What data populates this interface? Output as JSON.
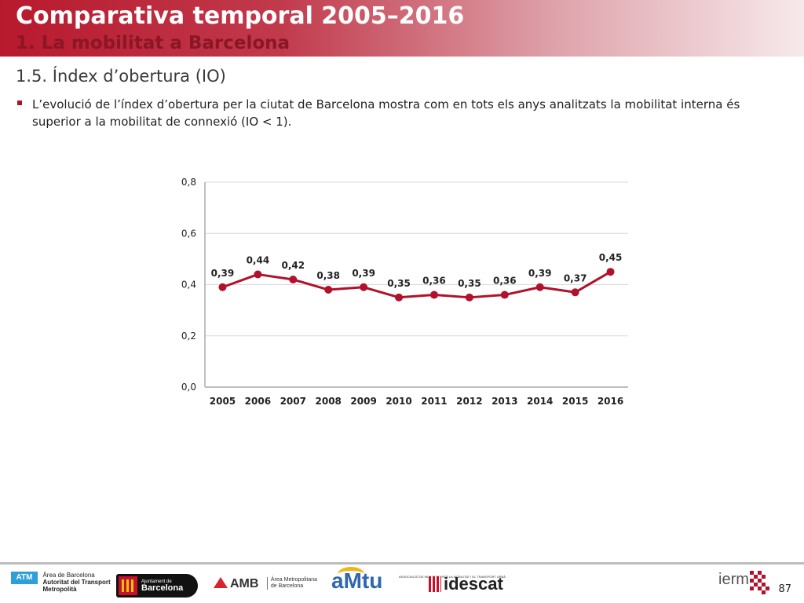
{
  "header": {
    "title": "Comparativa temporal 2005–2016",
    "subtitle": "1. La mobilitat a Barcelona"
  },
  "section_title": "1.5. Índex d’obertura (IO)",
  "bullet_text": "L’evolució de l’índex d’obertura per la ciutat de Barcelona mostra com en tots els anys analitzats la mobilitat interna és superior a la mobilitat de connexió (IO < 1).",
  "chart_data": {
    "type": "line",
    "categories": [
      "2005",
      "2006",
      "2007",
      "2008",
      "2009",
      "2010",
      "2011",
      "2012",
      "2013",
      "2014",
      "2015",
      "2016"
    ],
    "series": [
      {
        "values": [
          0.39,
          0.44,
          0.42,
          0.38,
          0.39,
          0.35,
          0.36,
          0.35,
          0.36,
          0.39,
          0.37,
          0.45
        ]
      }
    ],
    "data_labels": [
      "0,39",
      "0,44",
      "0,42",
      "0,38",
      "0,39",
      "0,35",
      "0,36",
      "0,35",
      "0,36",
      "0,39",
      "0,37",
      "0,45"
    ],
    "yticks": [
      0,
      0.2,
      0.4,
      0.6,
      0.8
    ],
    "ytick_labels": [
      "0,0",
      "0,2",
      "0,4",
      "0,6",
      "0,8"
    ],
    "ylim": [
      0,
      0.8
    ],
    "grid": true,
    "legend": "none",
    "line_color": "#b0122b"
  },
  "footer": {
    "atm_badge": "ATM",
    "atm_line1": "Àrea de Barcelona",
    "atm_line2": "Autoritat del Transport",
    "atm_line3": "Metropolità",
    "ajuntament_line1": "Ajuntament de",
    "ajuntament_line2": "Barcelona",
    "amb_name": "AMB",
    "amb_line1": "Àrea Metropolitana",
    "amb_line2": "de Barcelona",
    "amtu_name": "aMtu",
    "amtu_sub": "ASSOCIACIÓ DE MUNICIPIS PER LA MOBILITAT I EL TRANSPORT URBÀ",
    "idescat_name": "idescat",
    "ierm_name": "ierm",
    "page_number": "87"
  }
}
